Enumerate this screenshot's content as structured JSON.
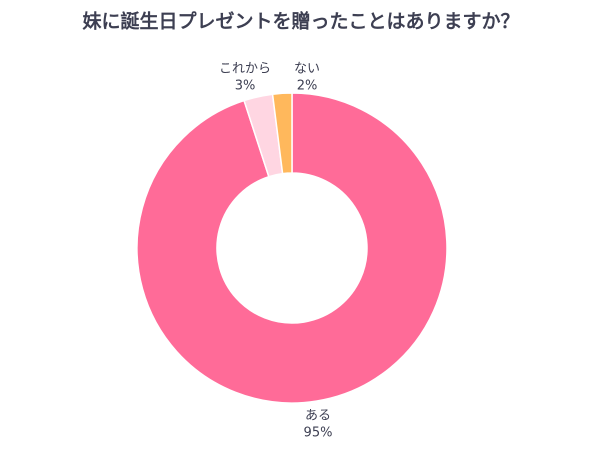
{
  "chart_data": {
    "type": "pie",
    "title": "妹に誕生日プレゼントを贈ったことはありますか？",
    "categories": [
      "ある",
      "これから",
      "ない"
    ],
    "values": [
      95,
      3,
      2
    ],
    "value_labels": [
      "95%",
      "3%",
      "2%"
    ],
    "colors": [
      "#ff6b98",
      "#ffd6e2",
      "#ffb85c"
    ]
  }
}
